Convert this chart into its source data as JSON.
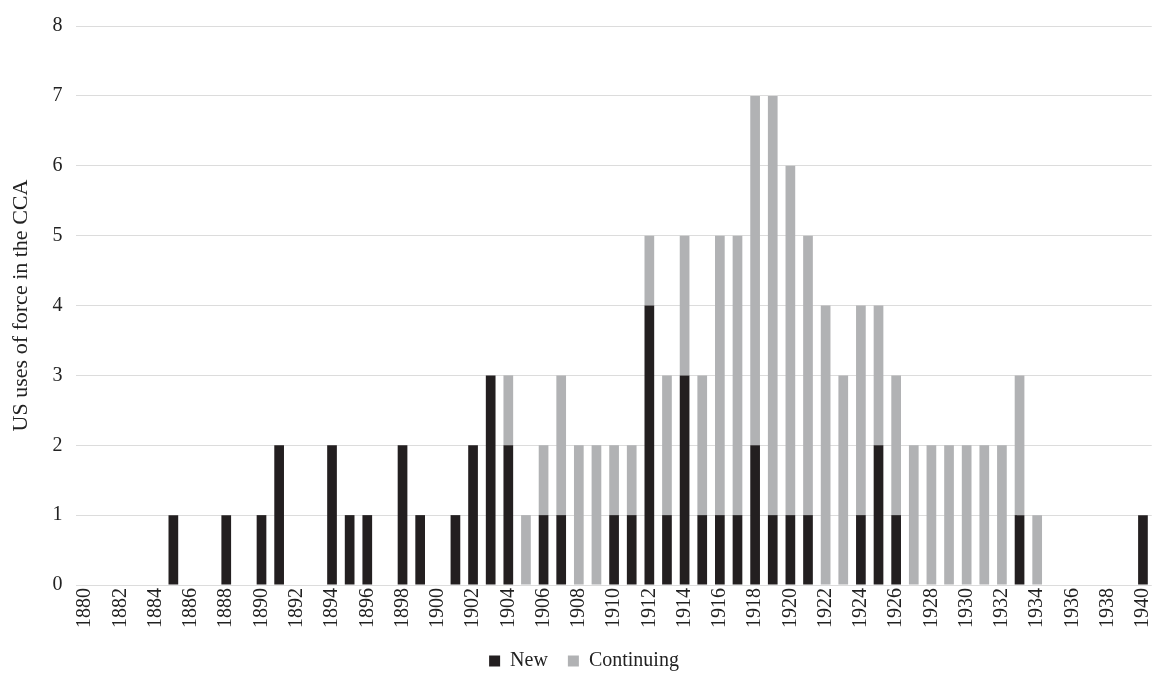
{
  "chart_data": {
    "type": "bar",
    "stacked": true,
    "ylabel": "US uses of force in the CCA",
    "categories": [
      "1880",
      null,
      "1882",
      null,
      "1884",
      null,
      "1886",
      null,
      "1888",
      null,
      "1890",
      null,
      "1892",
      null,
      "1894",
      null,
      "1896",
      null,
      "1898",
      null,
      "1900",
      null,
      "1902",
      null,
      "1904",
      null,
      "1906",
      null,
      "1908",
      null,
      "1910",
      null,
      "1912",
      null,
      "1914",
      null,
      "1916",
      null,
      "1918",
      null,
      "1920",
      null,
      "1922",
      null,
      "1924",
      null,
      "1926",
      null,
      "1928",
      null,
      "1930",
      null,
      "1932",
      null,
      "1934",
      null,
      "1936",
      null,
      "1938",
      null,
      "1940"
    ],
    "series": [
      {
        "name": "New",
        "color": "#231f20",
        "values": [
          0,
          0,
          0,
          0,
          0,
          1,
          0,
          0,
          1,
          0,
          1,
          2,
          0,
          0,
          2,
          1,
          1,
          0,
          2,
          1,
          0,
          1,
          2,
          3,
          2,
          0,
          1,
          1,
          0,
          0,
          1,
          1,
          4,
          1,
          3,
          1,
          1,
          1,
          2,
          1,
          1,
          1,
          0,
          0,
          1,
          2,
          1,
          0,
          0,
          0,
          0,
          0,
          0,
          1,
          0,
          0,
          0,
          0,
          0,
          0,
          1
        ]
      },
      {
        "name": "Continuing",
        "color": "#b1b2b4",
        "values": [
          0,
          0,
          0,
          0,
          0,
          0,
          0,
          0,
          0,
          0,
          0,
          0,
          0,
          0,
          0,
          0,
          0,
          0,
          0,
          0,
          0,
          0,
          0,
          0,
          1,
          1,
          1,
          2,
          2,
          2,
          1,
          1,
          1,
          2,
          2,
          2,
          4,
          4,
          5,
          6,
          5,
          4,
          4,
          3,
          3,
          2,
          2,
          2,
          2,
          2,
          2,
          2,
          2,
          2,
          1,
          0,
          0,
          0,
          0,
          0,
          0
        ]
      }
    ],
    "ylim": [
      0,
      8
    ],
    "yticks": [
      0,
      1,
      2,
      3,
      4,
      5,
      6,
      7,
      8
    ],
    "grid": "y",
    "legend": "bottom"
  }
}
